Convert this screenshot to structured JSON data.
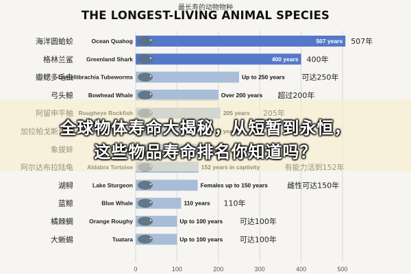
{
  "header": {
    "subtitle_cn": "最长寿的动物物种",
    "title": "THE LONGEST-LIVING ANIMAL SPECIES"
  },
  "overlay": {
    "line1": "全球物体寿命大揭秘，从短暂到永恒，",
    "line2": "这些物品寿命排名你知道吗？"
  },
  "colors": {
    "bar": "#a9bcd8",
    "bar_highlight": "#5678c8",
    "grid": "#d8d8d8"
  },
  "chart_data": {
    "type": "bar",
    "orientation": "horizontal",
    "xlim": [
      0,
      500
    ],
    "x_ticks": [
      0,
      100,
      200,
      300,
      400,
      500
    ],
    "grid": true,
    "rows": [
      {
        "name_cn": "海洋圆蛤蚧",
        "name_en": "Ocean Quahog",
        "value": 507,
        "bar_label": "507 years",
        "label_inside": true,
        "note_cn": "507年",
        "icon": "clam-icon"
      },
      {
        "name_cn": "格林兰鲨",
        "name_en": "Greenland Shark",
        "value": 400,
        "bar_label": "400 years",
        "label_inside": true,
        "note_cn": "400年",
        "icon": "shark-icon"
      },
      {
        "name_cn": "瓣鳃多毛虫",
        "name_en": "Lamellibrachia Tubeworms",
        "value": 250,
        "bar_label": "Up to 250 years",
        "label_inside": false,
        "note_cn": "可达250年",
        "icon": "tubeworm-icon"
      },
      {
        "name_cn": "弓头鲸",
        "name_en": "Bowhead Whale",
        "value": 200,
        "bar_label": "Over 200 years",
        "label_inside": false,
        "note_cn": "超过200年",
        "icon": "whale-icon"
      },
      {
        "name_cn": "阿留申平鲉",
        "name_en": "Rougheye Rockfish",
        "value": 205,
        "bar_label": "205 years",
        "label_inside": false,
        "note_cn": "205年",
        "icon": "rockfish-icon"
      },
      {
        "name_cn": "加拉帕戈斯巨龟",
        "name_en": "Giant Tortoise",
        "value": 177,
        "bar_label": "177 years",
        "label_inside": false,
        "note_cn": "",
        "icon": "tortoise-icon"
      },
      {
        "name_cn": "象拔蚌",
        "name_en": "Geoduck",
        "value": 168,
        "bar_label": "168 years",
        "label_inside": false,
        "note_cn": "",
        "icon": "geoduck-icon"
      },
      {
        "name_cn": "阿尔达布拉陆龟",
        "name_en": "Aldabra Tortoise",
        "value": 152,
        "bar_label": "152 years in captivity",
        "label_inside": false,
        "note_cn": "有能力活到152年",
        "icon": "tortoise-icon"
      },
      {
        "name_cn": "湖鲟",
        "name_en": "Lake Sturgeon",
        "value": 150,
        "bar_label": "Females up to 150 years",
        "label_inside": false,
        "note_cn": "雌性可达150年",
        "icon": "sturgeon-icon"
      },
      {
        "name_cn": "蓝鲸",
        "name_en": "Blue Whale",
        "value": 110,
        "bar_label": "110 years",
        "label_inside": false,
        "note_cn": "110年",
        "icon": "blue-whale-icon"
      },
      {
        "name_cn": "橘棘鲷",
        "name_en": "Orange Roughy",
        "value": 100,
        "bar_label": "Up to 100 years",
        "label_inside": false,
        "note_cn": "可达100年",
        "icon": "orange-fish-icon"
      },
      {
        "name_cn": "大蜥蜴",
        "name_en": "Tuatara",
        "value": 100,
        "bar_label": "Up to 100 years",
        "label_inside": false,
        "note_cn": "可达100年",
        "icon": "lizard-icon"
      }
    ]
  }
}
